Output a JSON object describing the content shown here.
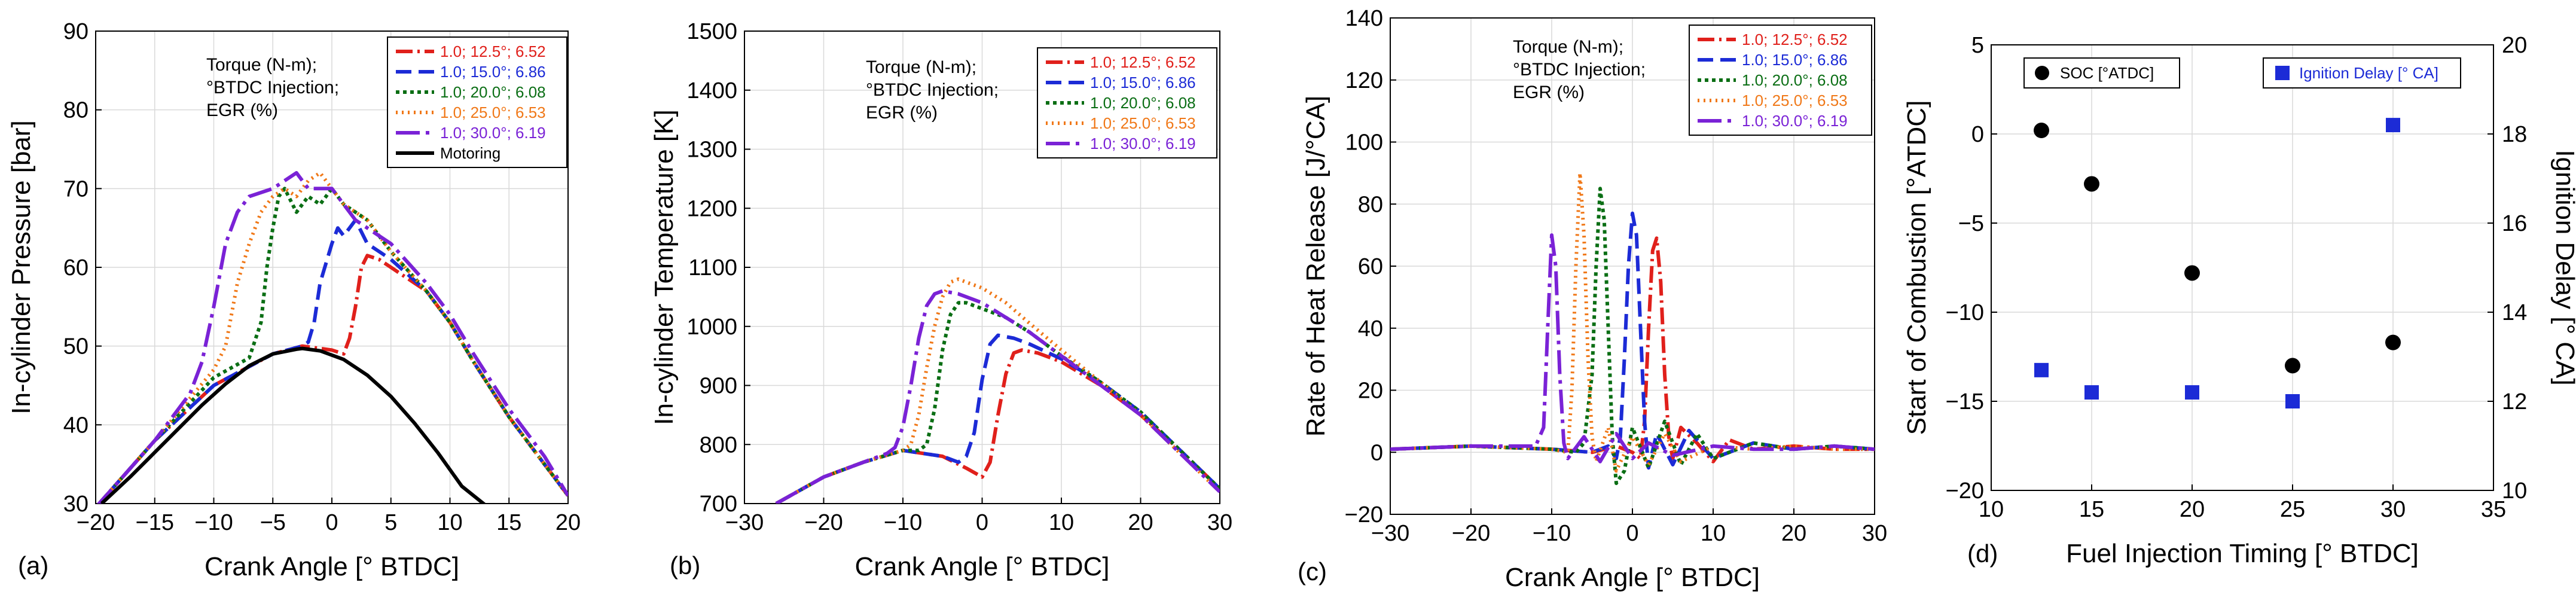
{
  "chart_data": [
    {
      "id": "a",
      "type": "line",
      "panel_label": "(a)",
      "xlabel": "Crank Angle [° BTDC]",
      "ylabel": "In-cylinder Pressure [bar]",
      "xlim": [
        -20,
        20
      ],
      "ylim": [
        30,
        90
      ],
      "xticks": [
        -20,
        -15,
        -10,
        -5,
        0,
        5,
        10,
        15,
        20
      ],
      "yticks": [
        30,
        40,
        50,
        60,
        70,
        80,
        90
      ],
      "annotation": [
        "Torque (N-m);",
        "°BTDC Injection;",
        "EGR (%)"
      ],
      "legend_title": "",
      "series": [
        {
          "name": "1.0; 12.5°; 6.52",
          "color": "#e0201b",
          "dash": "28,8,4,8",
          "x": [
            -20,
            -15,
            -10,
            -5,
            -2.5,
            0,
            1,
            1.5,
            2,
            2.5,
            3,
            4,
            5,
            6,
            8,
            10,
            12,
            15,
            18,
            20
          ],
          "y": [
            29.5,
            38,
            45,
            49,
            50,
            49.5,
            49,
            51,
            55,
            60,
            61.5,
            61,
            60,
            59,
            57,
            53,
            48,
            41,
            35,
            31
          ]
        },
        {
          "name": "1.0; 15.0°; 6.86",
          "color": "#1c2bd6",
          "dash": "26,12",
          "x": [
            -20,
            -15,
            -10,
            -5,
            -2.5,
            -2,
            -1.5,
            -1,
            0,
            0.5,
            1,
            2,
            3,
            5,
            8,
            10,
            12,
            15,
            18,
            20
          ],
          "y": [
            29.5,
            38,
            45,
            49,
            50,
            50.5,
            53,
            58,
            63,
            65,
            64,
            66,
            63,
            61,
            57,
            53,
            48,
            41,
            35,
            31
          ]
        },
        {
          "name": "1.0; 20.0°; 6.08",
          "color": "#0a6e14",
          "dash": "6,6",
          "x": [
            -20,
            -15,
            -10,
            -7,
            -6,
            -5.5,
            -5,
            -4.5,
            -4,
            -3,
            -2,
            -1,
            0,
            1,
            2,
            3,
            5,
            8,
            10,
            12,
            15,
            18,
            20
          ],
          "y": [
            29.5,
            38,
            46,
            48.5,
            53,
            60,
            65,
            69,
            70,
            67,
            69,
            68,
            70,
            68,
            67,
            66,
            62,
            57,
            53,
            48,
            41,
            35,
            31
          ]
        },
        {
          "name": "1.0; 25.0°; 6.53",
          "color": "#f07818",
          "dash": "3,7",
          "x": [
            -20,
            -15,
            -10,
            -9,
            -8,
            -7,
            -6,
            -5,
            -4,
            -3,
            -2,
            -1,
            0,
            1,
            2,
            3,
            5,
            8,
            10,
            12,
            15,
            18,
            20
          ],
          "y": [
            29.5,
            38,
            47,
            50,
            58,
            63,
            67,
            69,
            70,
            69,
            71,
            72,
            70,
            68,
            67,
            66,
            62,
            57,
            53,
            48,
            41,
            35,
            31
          ]
        },
        {
          "name": "1.0; 30.0°; 6.19",
          "color": "#7a22d6",
          "dash": "40,10,6,10",
          "x": [
            -20,
            -15,
            -12,
            -11,
            -10,
            -9,
            -8,
            -7,
            -5,
            -3,
            -2,
            0,
            1,
            2,
            3,
            5,
            8,
            10,
            12,
            15,
            18,
            20
          ],
          "y": [
            29.5,
            38,
            44,
            48,
            55,
            63,
            67,
            69,
            70,
            72,
            70,
            70,
            68,
            66,
            65,
            63,
            58,
            54,
            49,
            42,
            36,
            31
          ]
        },
        {
          "name": "Motoring",
          "color": "#000000",
          "dash": "",
          "x": [
            -19.5,
            -17,
            -15,
            -13,
            -11,
            -9,
            -7,
            -5,
            -3,
            -2.5,
            -1,
            1,
            3,
            5,
            7,
            9,
            11,
            13.5
          ],
          "y": [
            30,
            33.5,
            36.5,
            39.5,
            42.5,
            45.2,
            47.5,
            49,
            49.6,
            49.7,
            49.4,
            48.3,
            46.3,
            43.6,
            40.2,
            36.4,
            32.2,
            29.2
          ]
        }
      ]
    },
    {
      "id": "b",
      "type": "line",
      "panel_label": "(b)",
      "xlabel": "Crank Angle [° BTDC]",
      "ylabel": "In-cylinder Temperature [K]",
      "xlim": [
        -30,
        30
      ],
      "ylim": [
        700,
        1500
      ],
      "xticks": [
        -30,
        -20,
        -10,
        0,
        10,
        20,
        30
      ],
      "yticks": [
        700,
        800,
        900,
        1000,
        1100,
        1200,
        1300,
        1400,
        1500
      ],
      "annotation": [
        "Torque (N-m);",
        "°BTDC Injection;",
        "EGR (%)"
      ],
      "series": [
        {
          "name": "1.0; 12.5°; 6.52",
          "color": "#e0201b",
          "dash": "28,8,4,8",
          "x": [
            -26,
            -20,
            -15,
            -10,
            -5,
            -2,
            0,
            1,
            2,
            3,
            4,
            5,
            7,
            10,
            15,
            20,
            25,
            30
          ],
          "y": [
            700,
            745,
            770,
            790,
            780,
            760,
            745,
            770,
            850,
            920,
            955,
            960,
            955,
            940,
            900,
            850,
            790,
            725
          ]
        },
        {
          "name": "1.0; 15.0°; 6.86",
          "color": "#1c2bd6",
          "dash": "26,12",
          "x": [
            -26,
            -20,
            -15,
            -10,
            -5,
            -3,
            -2,
            -1,
            0,
            1,
            2,
            4,
            6,
            10,
            15,
            20,
            25,
            30
          ],
          "y": [
            700,
            745,
            770,
            790,
            780,
            770,
            780,
            820,
            910,
            970,
            985,
            980,
            970,
            945,
            905,
            855,
            790,
            725
          ]
        },
        {
          "name": "1.0; 20.0°; 6.08",
          "color": "#0a6e14",
          "dash": "6,6",
          "x": [
            -26,
            -20,
            -15,
            -10,
            -8,
            -7,
            -6,
            -5,
            -4,
            -3,
            -2,
            0,
            3,
            6,
            10,
            15,
            20,
            25,
            30
          ],
          "y": [
            700,
            745,
            770,
            790,
            790,
            800,
            860,
            960,
            1020,
            1040,
            1040,
            1030,
            1015,
            990,
            950,
            905,
            855,
            790,
            725
          ]
        },
        {
          "name": "1.0; 25.0°; 6.53",
          "color": "#f07818",
          "dash": "3,7",
          "x": [
            -26,
            -20,
            -15,
            -10,
            -9,
            -8,
            -7,
            -6,
            -5,
            -4,
            -3,
            0,
            3,
            6,
            10,
            15,
            20,
            25,
            30
          ],
          "y": [
            700,
            745,
            770,
            790,
            800,
            850,
            930,
            1000,
            1050,
            1075,
            1080,
            1065,
            1040,
            1005,
            960,
            905,
            850,
            785,
            720
          ]
        },
        {
          "name": "1.0; 30.0°; 6.19",
          "color": "#7a22d6",
          "dash": "40,10,6,10",
          "x": [
            -26,
            -20,
            -15,
            -12,
            -11,
            -10,
            -9,
            -8,
            -7,
            -6,
            -5,
            -3,
            0,
            3,
            6,
            10,
            15,
            20,
            25,
            30
          ],
          "y": [
            700,
            745,
            770,
            785,
            795,
            830,
            900,
            980,
            1035,
            1055,
            1060,
            1055,
            1040,
            1015,
            990,
            950,
            900,
            850,
            785,
            720
          ]
        }
      ]
    },
    {
      "id": "c",
      "type": "line",
      "panel_label": "(c)",
      "xlabel": "Crank Angle [° BTDC]",
      "ylabel": "Rate of Heat Release [J/°CA]",
      "xlim": [
        -30,
        30
      ],
      "ylim": [
        -20,
        140
      ],
      "xticks": [
        -30,
        -20,
        -10,
        0,
        10,
        20,
        30
      ],
      "yticks": [
        -20,
        0,
        20,
        40,
        60,
        80,
        100,
        120,
        140
      ],
      "annotation": [
        "Torque (N-m);",
        "°BTDC Injection;",
        "EGR (%)"
      ],
      "series": [
        {
          "name": "1.0; 12.5°; 6.52",
          "color": "#e0201b",
          "dash": "28,8,4,8",
          "x": [
            -30,
            -20,
            -10,
            -5,
            -2,
            0,
            1,
            1.5,
            2,
            2.5,
            3,
            3.5,
            4,
            4.5,
            5,
            6,
            8,
            10,
            12,
            15,
            20,
            25,
            30
          ],
          "y": [
            1,
            2,
            1,
            0,
            2,
            0,
            -2,
            10,
            40,
            65,
            69,
            55,
            25,
            5,
            -2,
            8,
            3,
            -3,
            4,
            1,
            2,
            1,
            1
          ]
        },
        {
          "name": "1.0; 15.0°; 6.86",
          "color": "#1c2bd6",
          "dash": "26,12",
          "x": [
            -30,
            -20,
            -10,
            -5,
            -3,
            -2,
            -1.5,
            -1,
            -0.5,
            0,
            0.5,
            1,
            1.5,
            2,
            3,
            5,
            7,
            10,
            15,
            20,
            25,
            30
          ],
          "y": [
            1,
            2,
            1,
            0,
            2,
            -2,
            5,
            30,
            60,
            77,
            70,
            40,
            10,
            -5,
            6,
            -4,
            7,
            -2,
            3,
            1,
            2,
            1
          ]
        },
        {
          "name": "1.0; 20.0°; 6.08",
          "color": "#0a6e14",
          "dash": "6,6",
          "x": [
            -30,
            -20,
            -10,
            -7,
            -6,
            -5,
            -4.5,
            -4,
            -3.5,
            -3,
            -2.5,
            -2,
            -1,
            0,
            2,
            4,
            6,
            8,
            10,
            15,
            20,
            25,
            30
          ],
          "y": [
            1,
            2,
            1,
            0,
            3,
            25,
            60,
            85,
            75,
            40,
            5,
            -10,
            -6,
            8,
            -5,
            10,
            -4,
            6,
            -2,
            3,
            1,
            2,
            1
          ]
        },
        {
          "name": "1.0; 25.0°; 6.53",
          "color": "#f07818",
          "dash": "3,7",
          "x": [
            -30,
            -20,
            -10,
            -8,
            -7.5,
            -7,
            -6.5,
            -6,
            -5.5,
            -5,
            -4.5,
            -3,
            -2,
            0,
            2,
            4,
            6,
            10,
            15,
            20,
            25,
            30
          ],
          "y": [
            1,
            2,
            1,
            0,
            20,
            60,
            90,
            70,
            30,
            5,
            -3,
            8,
            -6,
            5,
            -4,
            6,
            -3,
            2,
            1,
            2,
            1,
            1
          ]
        },
        {
          "name": "1.0; 30.0°; 6.19",
          "color": "#7a22d6",
          "dash": "40,10,6,10",
          "x": [
            -30,
            -20,
            -12,
            -11,
            -10.5,
            -10,
            -9.5,
            -9,
            -8.5,
            -8,
            -6,
            -4,
            -2,
            0,
            2,
            5,
            10,
            15,
            20,
            25,
            30
          ],
          "y": [
            1,
            2,
            2,
            8,
            40,
            70,
            60,
            25,
            3,
            -2,
            5,
            -3,
            6,
            -2,
            3,
            -1,
            2,
            1,
            1,
            2,
            1
          ]
        }
      ]
    },
    {
      "id": "d",
      "type": "scatter",
      "panel_label": "(d)",
      "xlabel": "Fuel Injection Timing [° BTDC]",
      "ylabel": "Start of Combustion [°ATDC]",
      "y2label": "Ignition Delay [° CA]",
      "xlim": [
        10,
        35
      ],
      "ylim": [
        -20,
        5
      ],
      "y2lim": [
        10,
        20
      ],
      "xticks": [
        10,
        15,
        20,
        25,
        30,
        35
      ],
      "yticks": [
        -20,
        -15,
        -10,
        -5,
        0,
        5
      ],
      "y2ticks": [
        10,
        12,
        14,
        16,
        18,
        20
      ],
      "series": [
        {
          "name": "SOC [°ATDC]",
          "color": "#000000",
          "marker": "circle",
          "axis": "left",
          "x": [
            12.5,
            15,
            20,
            25,
            30
          ],
          "y": [
            0.2,
            -2.8,
            -7.8,
            -13.0,
            -11.7
          ]
        },
        {
          "name": "Ignition Delay [° CA]",
          "color": "#1c2bd6",
          "marker": "square",
          "axis": "right",
          "x": [
            12.5,
            15,
            20,
            25,
            30
          ],
          "y": [
            12.7,
            12.2,
            12.2,
            12.0,
            18.2
          ]
        }
      ]
    }
  ],
  "colors": {
    "text": "#000000",
    "axis2": "#1c2bd6",
    "grid": "#d9d9d9"
  }
}
